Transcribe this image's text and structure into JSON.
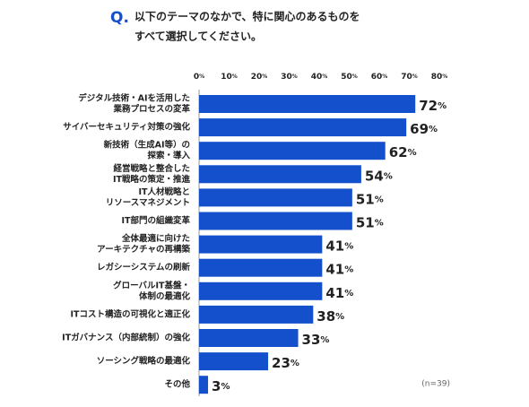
{
  "chart_data": {
    "type": "hbar",
    "title_prefix": "Q.",
    "title": [
      "以下のテーマのなかで、特に関心のあるものを",
      "すべて選択してください。"
    ],
    "note": "(n=39)",
    "categories": [
      [
        "デジタル技術・AIを活用した",
        "業務プロセスの変革"
      ],
      [
        "サイバーセキュリティ対策の強化"
      ],
      [
        "新技術（生成AI等）の",
        "探索・導入"
      ],
      [
        "経営戦略と整合した",
        "IT戦略の策定・推進"
      ],
      [
        "IT人材戦略と",
        "リソースマネジメント"
      ],
      [
        "IT部門の組織変革"
      ],
      [
        "全体最適に向けた",
        "アーキテクチャの再構築"
      ],
      [
        "レガシーシステムの刷新"
      ],
      [
        "グローバルIT基盤・",
        "体制の最適化"
      ],
      [
        "ITコスト構造の可視化と適正化"
      ],
      [
        "ITガバナンス（内部統制）の強化"
      ],
      [
        "ソーシング戦略の最適化"
      ],
      [
        "その他"
      ]
    ],
    "values": [
      72,
      69,
      62,
      54,
      51,
      51,
      41,
      41,
      41,
      38,
      33,
      23,
      3
    ],
    "value_labels": [
      "72%",
      "69%",
      "62%",
      "54%",
      "51%",
      "51%",
      "41%",
      "41%",
      "41%",
      "38%",
      "33%",
      "23%",
      "3%"
    ],
    "color": "#1550cc",
    "xlim": [
      0,
      80
    ],
    "xticks": [
      {
        "value": 0,
        "label": "0%"
      },
      {
        "value": 10,
        "label": "10%"
      },
      {
        "value": 20,
        "label": "20%"
      },
      {
        "value": 30,
        "label": "30%"
      },
      {
        "value": 40,
        "label": "40%"
      },
      {
        "value": 50,
        "label": "50%"
      },
      {
        "value": 60,
        "label": "60%"
      },
      {
        "value": 70,
        "label": "70%"
      },
      {
        "value": 80,
        "label": "80%"
      }
    ],
    "grid": false
  }
}
